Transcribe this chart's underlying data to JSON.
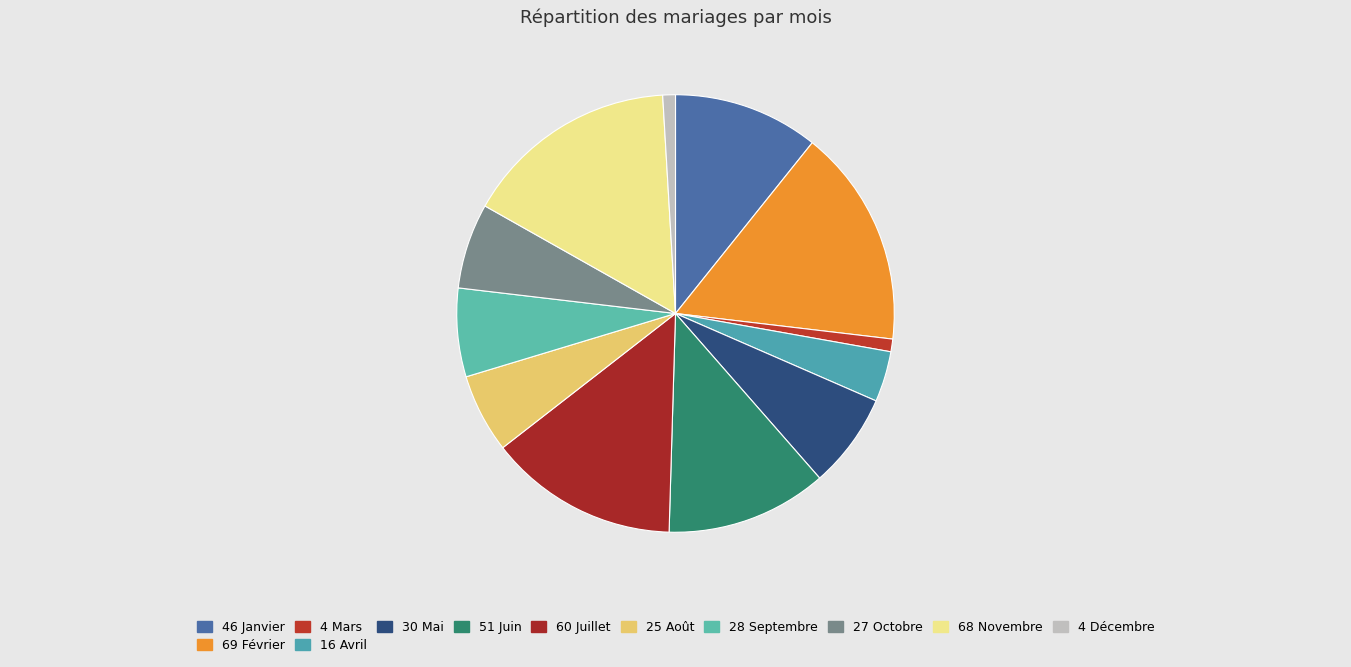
{
  "title": "Répartition des mariages par mois",
  "slices": [
    {
      "label": "46 Janvier",
      "value": 46,
      "color": "#4c6ea8"
    },
    {
      "label": "69 Février",
      "value": 69,
      "color": "#f0922b"
    },
    {
      "label": "4 Mars",
      "value": 4,
      "color": "#c0392b"
    },
    {
      "label": "16 Avril",
      "value": 16,
      "color": "#4ca6b0"
    },
    {
      "label": "30 Mai",
      "value": 30,
      "color": "#2d4d7e"
    },
    {
      "label": "51 Juin",
      "value": 51,
      "color": "#2e8b6e"
    },
    {
      "label": "60 Juillet",
      "value": 60,
      "color": "#a82828"
    },
    {
      "label": "25 Août",
      "value": 25,
      "color": "#e8c96a"
    },
    {
      "label": "28 Septembre",
      "value": 28,
      "color": "#5bbfaa"
    },
    {
      "label": "27 Octobre",
      "value": 27,
      "color": "#7a8a8a"
    },
    {
      "label": "68 Novembre",
      "value": 68,
      "color": "#f0e88a"
    },
    {
      "label": "4 Décembre",
      "value": 4,
      "color": "#c0bfbe"
    }
  ],
  "background_color": "#e8e8e8",
  "title_fontsize": 13,
  "legend_fontsize": 9,
  "legend_ncol": 10,
  "startangle": 90
}
